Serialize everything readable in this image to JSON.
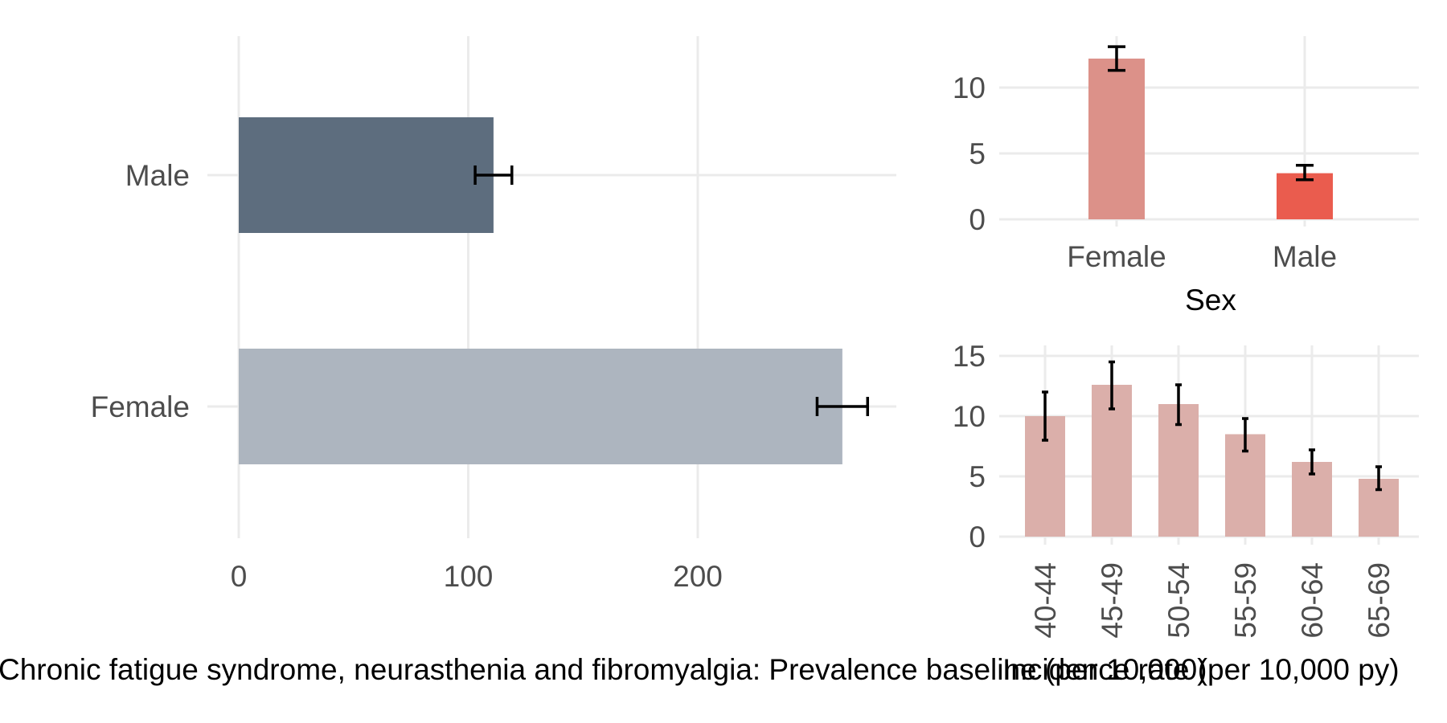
{
  "chart_data": [
    {
      "id": "prevalence",
      "type": "bar",
      "orientation": "horizontal",
      "categories": [
        "Male",
        "Female"
      ],
      "values": [
        111,
        263
      ],
      "error_low": [
        103,
        252
      ],
      "error_high": [
        119,
        274
      ],
      "colors": [
        "#5d6d7e",
        "#adb5bf"
      ],
      "xlim": [
        0,
        285
      ],
      "xticks": [
        0,
        100,
        200
      ],
      "xlabel": "Chronic fatigue syndrome, neurasthenia and fibromyalgia: Prevalence baseline (per 10,000)",
      "grid": true
    },
    {
      "id": "incidence_sex",
      "type": "bar",
      "categories": [
        "Female",
        "Male"
      ],
      "values": [
        12.2,
        3.5
      ],
      "error_low": [
        11.3,
        3.0
      ],
      "error_high": [
        13.1,
        4.1
      ],
      "colors": [
        "#dc9189",
        "#ea5c4e"
      ],
      "ylim": [
        0,
        13.8
      ],
      "yticks": [
        0,
        5,
        10
      ],
      "xlabel": "Sex",
      "grid": true
    },
    {
      "id": "incidence_age",
      "type": "bar",
      "categories": [
        "40-44",
        "45-49",
        "50-54",
        "55-59",
        "60-64",
        "65-69"
      ],
      "values": [
        10.0,
        12.6,
        11.0,
        8.5,
        6.2,
        4.8
      ],
      "error_low": [
        8.0,
        10.6,
        9.3,
        7.1,
        5.2,
        3.9
      ],
      "error_high": [
        12.0,
        14.5,
        12.6,
        9.8,
        7.2,
        5.8
      ],
      "colors": [
        "#dbafaa"
      ],
      "ylim": [
        0,
        15.8
      ],
      "yticks": [
        0,
        5,
        10,
        15
      ],
      "xlabel": "Incidence rate (per 10,000 py)",
      "grid": true
    }
  ]
}
